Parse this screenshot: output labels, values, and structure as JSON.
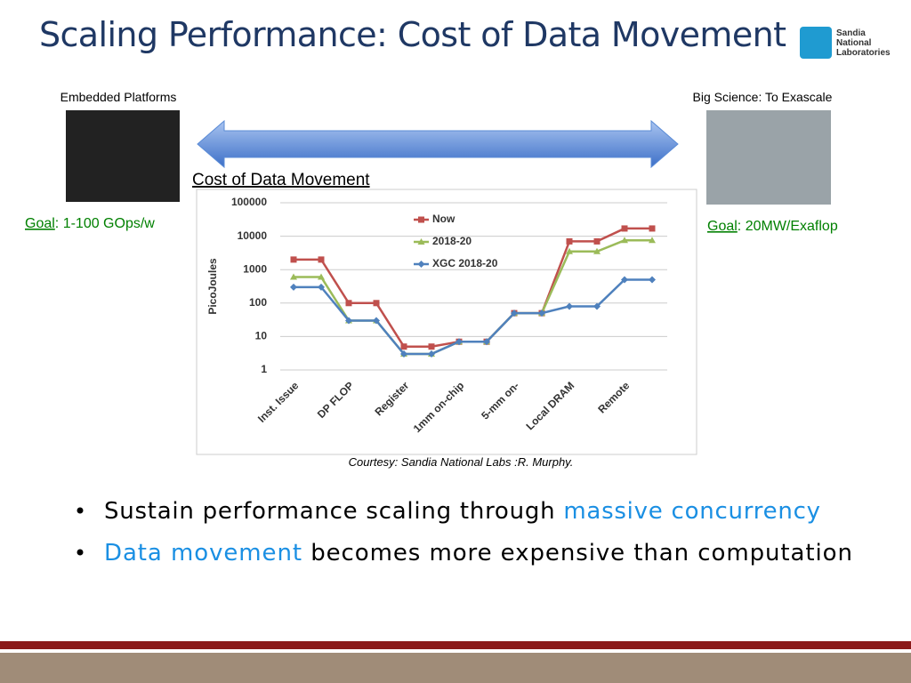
{
  "title": "Scaling Performance: Cost of Data Movement",
  "logo": {
    "lines": [
      "Sandia",
      "National",
      "Laboratories"
    ]
  },
  "left": {
    "caption": "Embedded Platforms",
    "goal_label": "Goal",
    "goal_text": ": 1-100 GOps/w"
  },
  "right": {
    "caption": "Big Science: To Exascale",
    "goal_label": "Goal",
    "goal_text": ": 20MW/Exaflop"
  },
  "arrow_label": "Cost of Data Movement",
  "courtesy": "Courtesy: Sandia National Labs :R.  Murphy.",
  "bullets": [
    [
      "Sustain performance scaling through ",
      "massive concurrency"
    ],
    [
      "Data movement",
      " becomes more expensive than computation"
    ]
  ],
  "chart_data": {
    "type": "line",
    "ylabel": "PicoJoules",
    "yscale": "log",
    "ylim": [
      1,
      100000
    ],
    "yticks": [
      1,
      10,
      100,
      1000,
      10000,
      100000
    ],
    "grid": true,
    "categories": [
      "Inst. Issue",
      null,
      "DP FLOP",
      null,
      "Register",
      null,
      "1mm on-chip",
      null,
      "5-mm on-",
      null,
      "Local DRAM",
      null,
      "Remote",
      null
    ],
    "series": [
      {
        "name": "Now",
        "color": "#c0504d",
        "marker": "square",
        "values": [
          2000,
          2000,
          100,
          100,
          5,
          5,
          7,
          7,
          50,
          50,
          7000,
          7000,
          17000,
          17000
        ]
      },
      {
        "name": "2018-20",
        "color": "#9bbb59",
        "marker": "triangle",
        "values": [
          600,
          600,
          30,
          30,
          3,
          3,
          7,
          7,
          50,
          50,
          3500,
          3500,
          7500,
          7500
        ]
      },
      {
        "name": "XGC 2018-20",
        "color": "#4f81bd",
        "marker": "diamond",
        "values": [
          300,
          300,
          30,
          30,
          3,
          3,
          7,
          7,
          50,
          50,
          80,
          80,
          500,
          500
        ]
      }
    ]
  }
}
